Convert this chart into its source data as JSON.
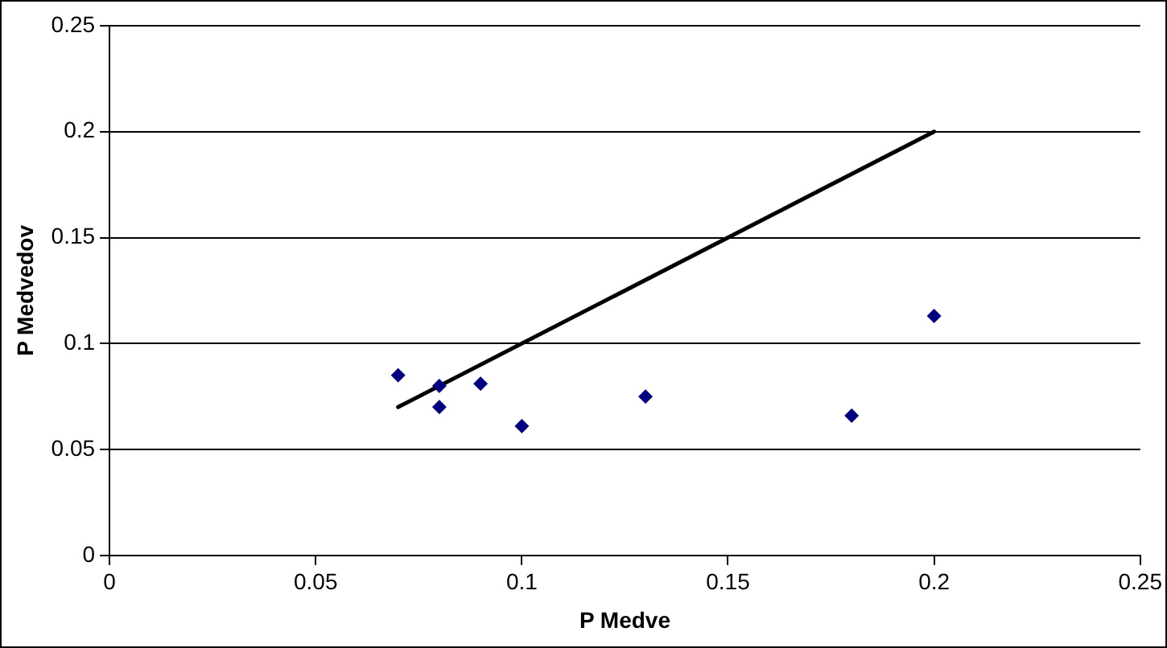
{
  "chart_data": {
    "type": "scatter",
    "xlabel": "P Medve",
    "ylabel": "P Medvedov",
    "xlim": [
      0,
      0.25
    ],
    "xticks": [
      0,
      0.05,
      0.1,
      0.15,
      0.2,
      0.25
    ],
    "ylim": [
      0,
      0.25
    ],
    "yticks": [
      0,
      0.05,
      0.1,
      0.15,
      0.2,
      0.25
    ],
    "grid": "y",
    "legend": false,
    "marker": "diamond",
    "series": [
      {
        "color": "#000080",
        "x": [
          0.07,
          0.08,
          0.08,
          0.09,
          0.1,
          0.13,
          0.18,
          0.2
        ],
        "values": [
          0.085,
          0.08,
          0.07,
          0.081,
          0.061,
          0.075,
          0.066,
          0.113
        ]
      },
      {
        "type": "line",
        "color": "#000000",
        "marker": "none",
        "x": [
          0.07,
          0.2
        ],
        "values": [
          0.07,
          0.2
        ]
      }
    ]
  }
}
